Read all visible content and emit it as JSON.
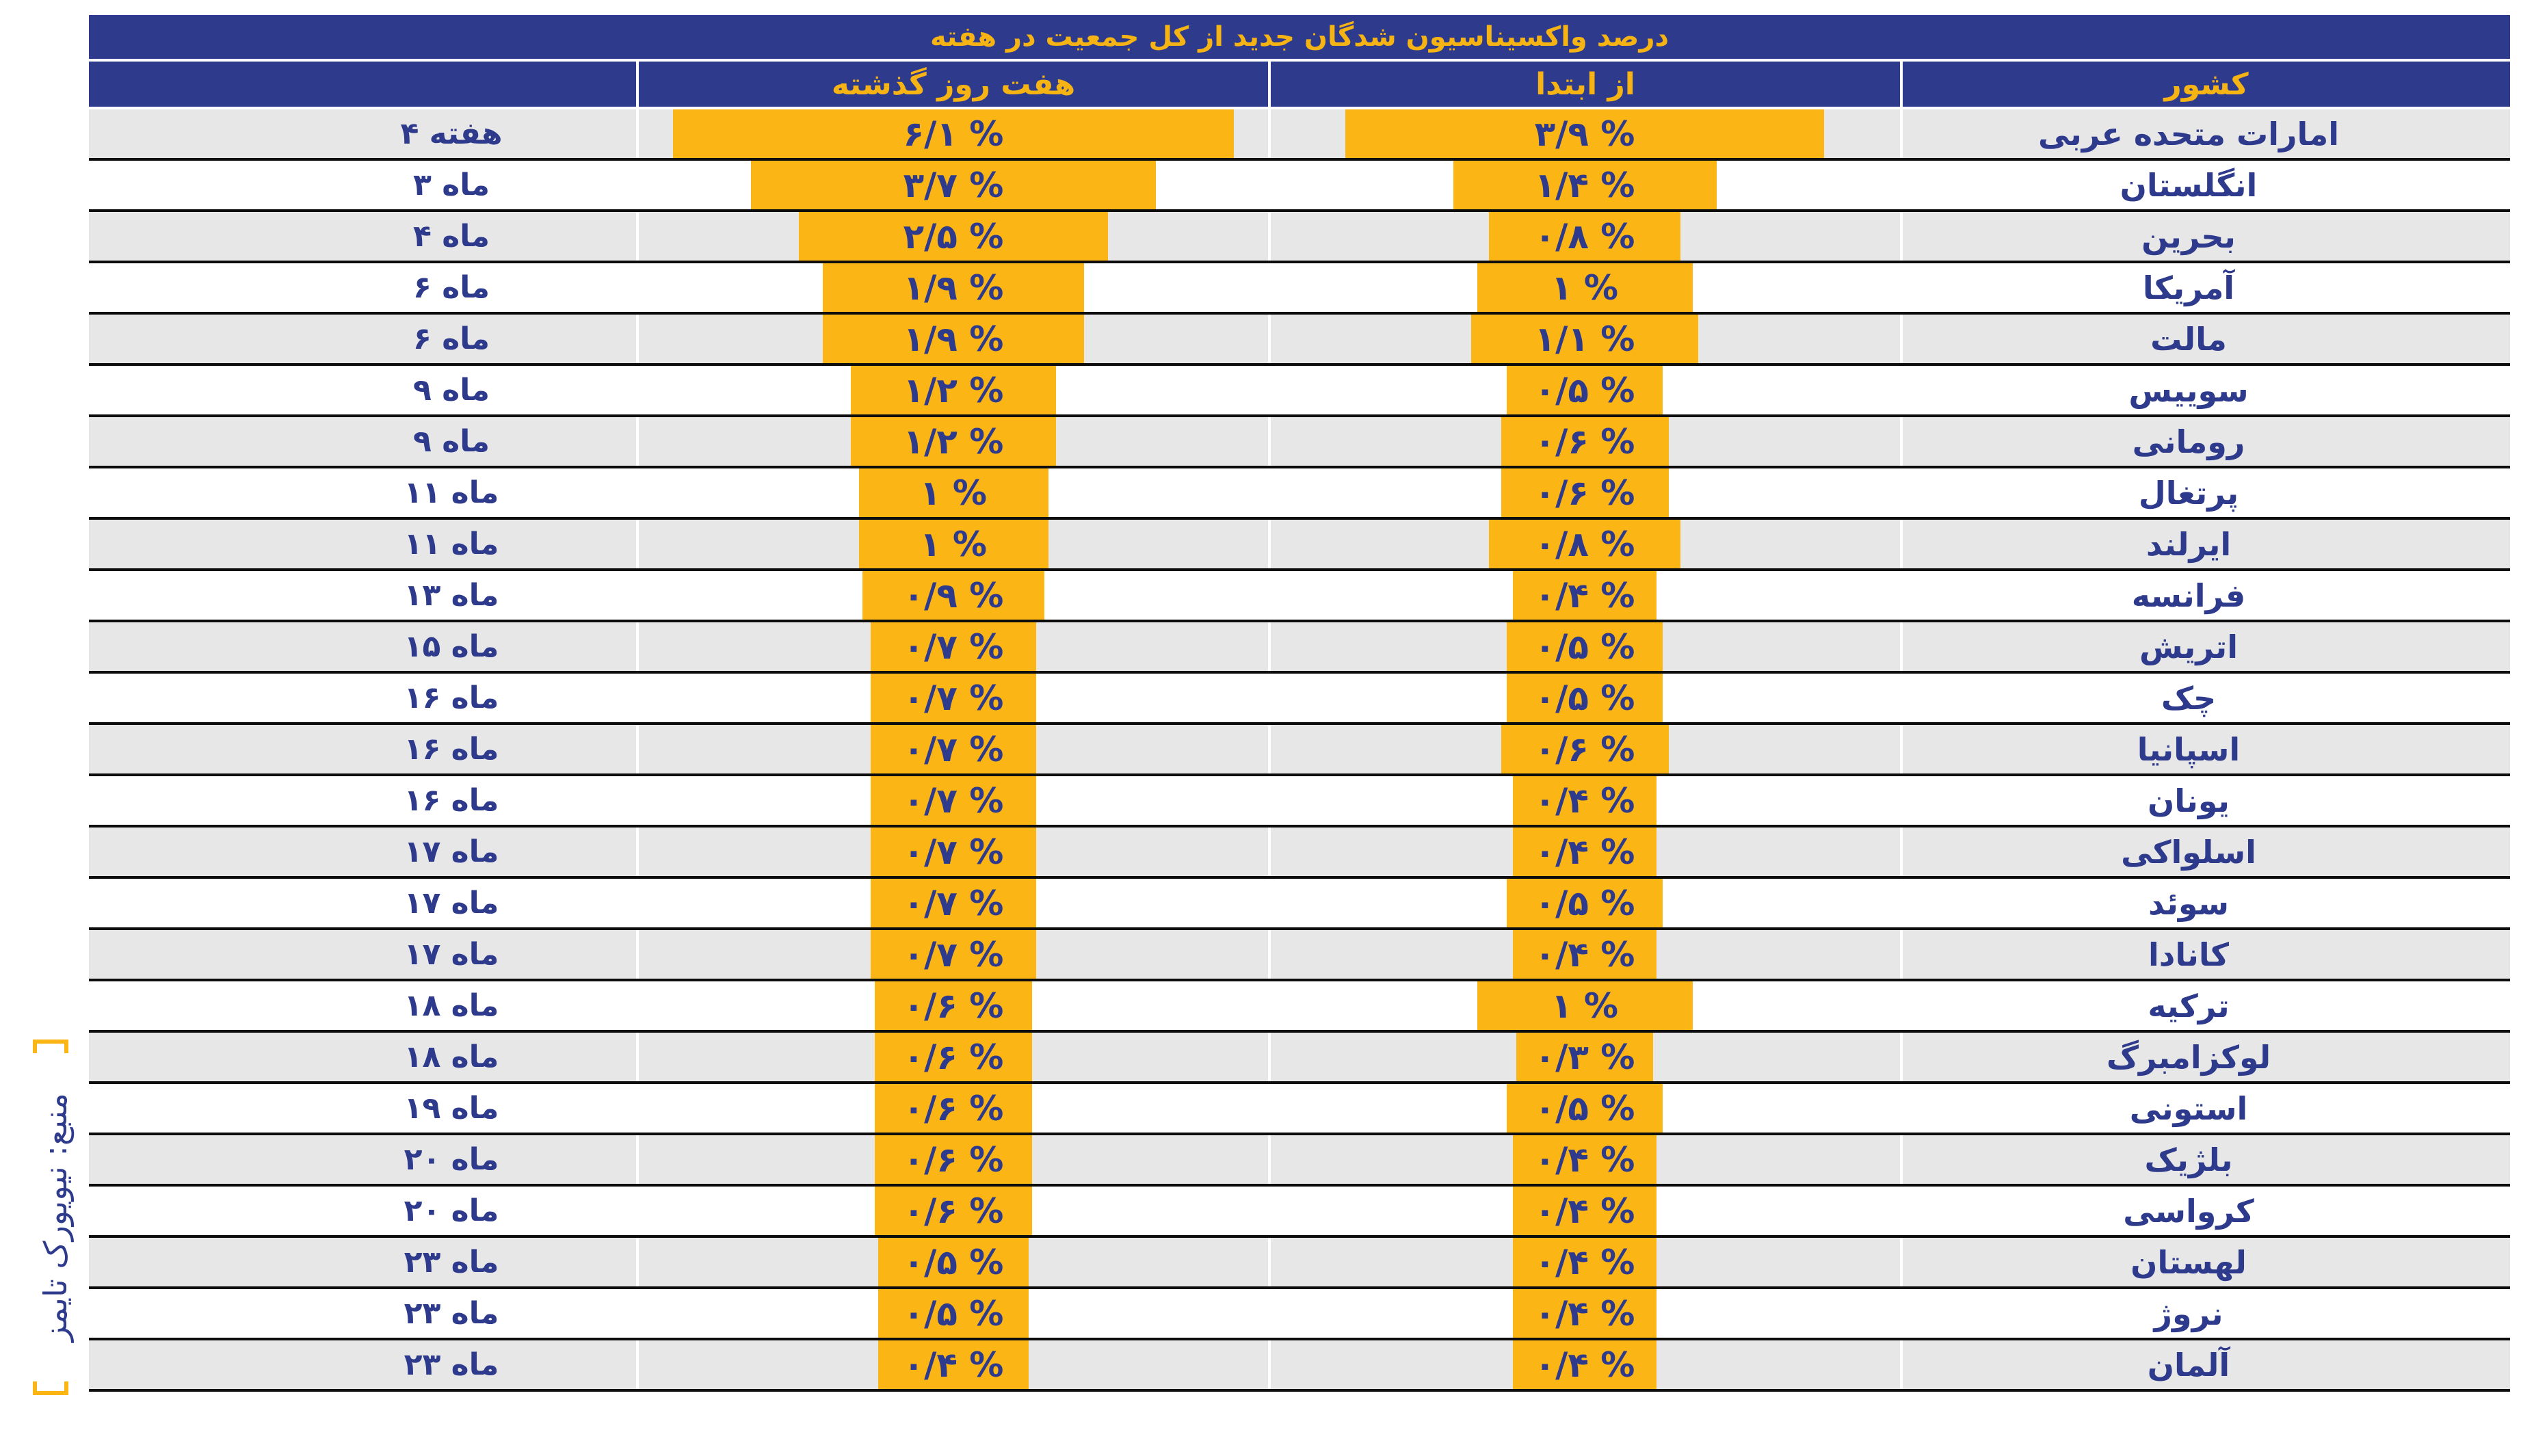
{
  "chart_data": {
    "type": "table",
    "title": "درصد واکسیناسیون شدگان جدید از کل جمعیت در هفته",
    "columns": [
      "کشور",
      "از ابتدا",
      "هفت روز گذشته",
      ""
    ],
    "rows": [
      {
        "country": "امارات متحده عربی",
        "since_start": 3.9,
        "since_start_label": "۳/۹ %",
        "last7": 6.1,
        "last7_label": "۶/۱ %",
        "duration": "۴ هفته"
      },
      {
        "country": "انگلستان",
        "since_start": 1.4,
        "since_start_label": "۱/۴ %",
        "last7": 3.7,
        "last7_label": "۳/۷ %",
        "duration": "۳ ماه"
      },
      {
        "country": "بحرین",
        "since_start": 0.8,
        "since_start_label": "۰/۸ %",
        "last7": 2.5,
        "last7_label": "۲/۵ %",
        "duration": "۴ ماه"
      },
      {
        "country": "آمریکا",
        "since_start": 1,
        "since_start_label": "۱ %",
        "last7": 1.9,
        "last7_label": "۱/۹ %",
        "duration": "۶ ماه"
      },
      {
        "country": "مالت",
        "since_start": 1.1,
        "since_start_label": "۱/۱ %",
        "last7": 1.9,
        "last7_label": "۱/۹ %",
        "duration": "۶ ماه"
      },
      {
        "country": "سوییس",
        "since_start": 0.5,
        "since_start_label": "۰/۵ %",
        "last7": 1.2,
        "last7_label": "۱/۲ %",
        "duration": "۹ ماه"
      },
      {
        "country": "رومانی",
        "since_start": 0.6,
        "since_start_label": "۰/۶ %",
        "last7": 1.2,
        "last7_label": "۱/۲ %",
        "duration": "۹ ماه"
      },
      {
        "country": "پرتغال",
        "since_start": 0.6,
        "since_start_label": "۰/۶ %",
        "last7": 1,
        "last7_label": "۱ %",
        "duration": "۱۱ ماه"
      },
      {
        "country": "ایرلند",
        "since_start": 0.8,
        "since_start_label": "۰/۸ %",
        "last7": 1,
        "last7_label": "۱ %",
        "duration": "۱۱ ماه"
      },
      {
        "country": "فرانسه",
        "since_start": 0.4,
        "since_start_label": "۰/۴ %",
        "last7": 0.9,
        "last7_label": "۰/۹ %",
        "duration": "۱۳ ماه"
      },
      {
        "country": "اتریش",
        "since_start": 0.5,
        "since_start_label": "۰/۵ %",
        "last7": 0.7,
        "last7_label": "۰/۷ %",
        "duration": "۱۵ ماه"
      },
      {
        "country": "چک",
        "since_start": 0.5,
        "since_start_label": "۰/۵ %",
        "last7": 0.7,
        "last7_label": "۰/۷ %",
        "duration": "۱۶ ماه"
      },
      {
        "country": "اسپانیا",
        "since_start": 0.6,
        "since_start_label": "۰/۶ %",
        "last7": 0.7,
        "last7_label": "۰/۷ %",
        "duration": "۱۶ ماه"
      },
      {
        "country": "یونان",
        "since_start": 0.4,
        "since_start_label": "۰/۴ %",
        "last7": 0.7,
        "last7_label": "۰/۷ %",
        "duration": "۱۶ ماه"
      },
      {
        "country": "اسلواکی",
        "since_start": 0.4,
        "since_start_label": "۰/۴ %",
        "last7": 0.7,
        "last7_label": "۰/۷ %",
        "duration": "۱۷ ماه"
      },
      {
        "country": "سوئد",
        "since_start": 0.5,
        "since_start_label": "۰/۵ %",
        "last7": 0.7,
        "last7_label": "۰/۷ %",
        "duration": "۱۷ ماه"
      },
      {
        "country": "کانادا",
        "since_start": 0.4,
        "since_start_label": "۰/۴ %",
        "last7": 0.7,
        "last7_label": "۰/۷ %",
        "duration": "۱۷ ماه"
      },
      {
        "country": "ترکیه",
        "since_start": 1,
        "since_start_label": "۱ %",
        "last7": 0.6,
        "last7_label": "۰/۶ %",
        "duration": "۱۸ ماه"
      },
      {
        "country": "لوکزامبرگ",
        "since_start": 0.3,
        "since_start_label": "۰/۳ %",
        "last7": 0.6,
        "last7_label": "۰/۶ %",
        "duration": "۱۸ ماه"
      },
      {
        "country": "استونی",
        "since_start": 0.5,
        "since_start_label": "۰/۵ %",
        "last7": 0.6,
        "last7_label": "۰/۶ %",
        "duration": "۱۹ ماه"
      },
      {
        "country": "بلژیک",
        "since_start": 0.4,
        "since_start_label": "۰/۴ %",
        "last7": 0.6,
        "last7_label": "۰/۶ %",
        "duration": "۲۰ ماه"
      },
      {
        "country": "کرواسی",
        "since_start": 0.4,
        "since_start_label": "۰/۴ %",
        "last7": 0.6,
        "last7_label": "۰/۶ %",
        "duration": "۲۰ ماه"
      },
      {
        "country": "لهستان",
        "since_start": 0.4,
        "since_start_label": "۰/۴ %",
        "last7": 0.5,
        "last7_label": "۰/۵ %",
        "duration": "۲۳ ماه"
      },
      {
        "country": "نروژ",
        "since_start": 0.4,
        "since_start_label": "۰/۴ %",
        "last7": 0.5,
        "last7_label": "۰/۵ %",
        "duration": "۲۳ ماه"
      },
      {
        "country": "آلمان",
        "since_start": 0.4,
        "since_start_label": "۰/۴ %",
        "last7": 0.4,
        "last7_label": "۰/۴ %",
        "duration": "۲۳ ماه"
      }
    ]
  },
  "source": "منبع: نیویورک تایمز",
  "colors": {
    "header_bg": "#2e3a8c",
    "header_text": "#f5b414",
    "bar": "#fbb616",
    "text": "#2e3a8c",
    "row_alt": "#e7e7e8"
  }
}
